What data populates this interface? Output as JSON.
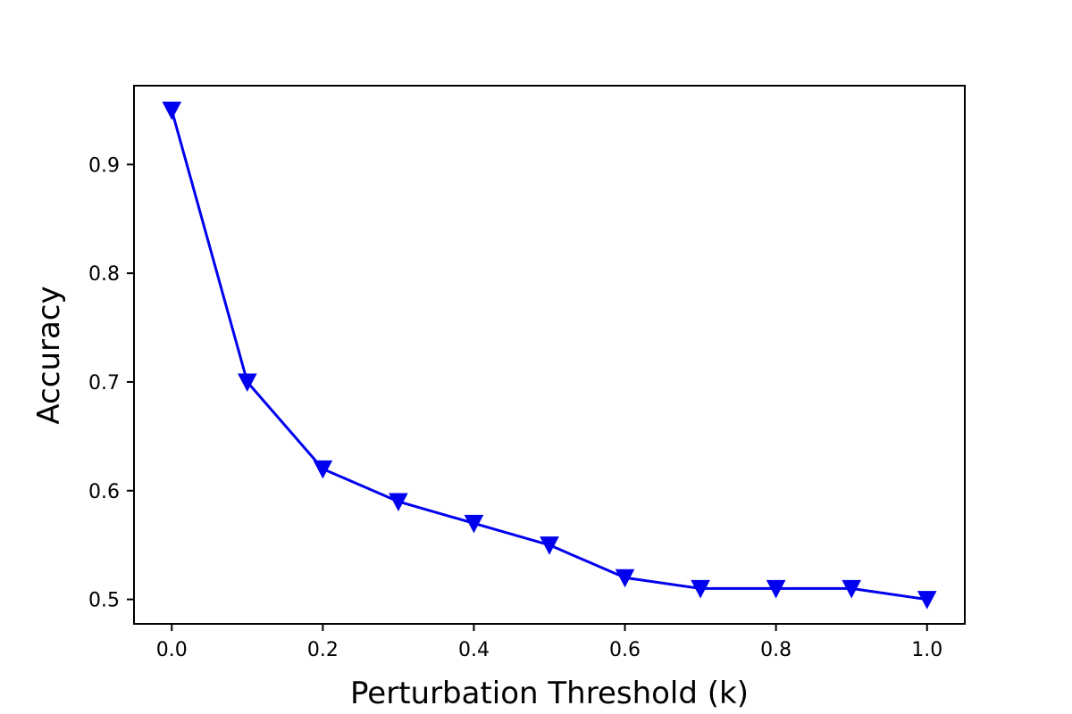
{
  "chart_data": {
    "type": "line",
    "title": "",
    "xlabel": "Perturbation Threshold (k)",
    "ylabel": "Accuracy",
    "x": [
      0.0,
      0.1,
      0.2,
      0.3,
      0.4,
      0.5,
      0.6,
      0.7,
      0.8,
      0.9,
      1.0
    ],
    "series": [
      {
        "values": [
          0.95,
          0.7,
          0.62,
          0.59,
          0.57,
          0.55,
          0.52,
          0.51,
          0.51,
          0.51,
          0.5
        ],
        "color": "#0000ee",
        "marker": "triangle-down"
      }
    ],
    "xlim": [
      -0.05,
      1.05
    ],
    "ylim": [
      0.4775,
      0.9725
    ],
    "xticks": [
      0.0,
      0.2,
      0.4,
      0.6,
      0.8,
      1.0
    ],
    "xtick_labels": [
      "0.0",
      "0.2",
      "0.4",
      "0.6",
      "0.8",
      "1.0"
    ],
    "yticks": [
      0.5,
      0.6,
      0.7,
      0.8,
      0.9
    ],
    "ytick_labels": [
      "0.5",
      "0.6",
      "0.7",
      "0.8",
      "0.9"
    ],
    "grid": false,
    "legend": "none"
  }
}
